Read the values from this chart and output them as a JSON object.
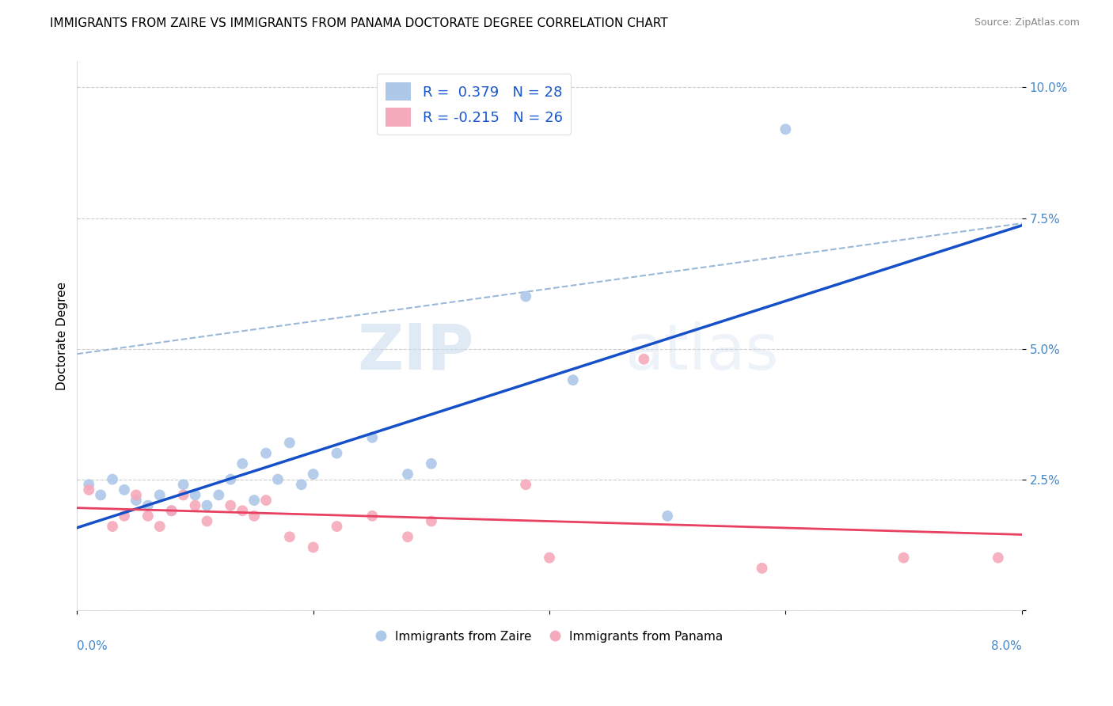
{
  "title": "IMMIGRANTS FROM ZAIRE VS IMMIGRANTS FROM PANAMA DOCTORATE DEGREE CORRELATION CHART",
  "source": "Source: ZipAtlas.com",
  "ylabel": "Doctorate Degree",
  "y_ticks": [
    0.0,
    0.025,
    0.05,
    0.075,
    0.1
  ],
  "y_tick_labels": [
    "",
    "2.5%",
    "5.0%",
    "7.5%",
    "10.0%"
  ],
  "xlim": [
    0.0,
    0.08
  ],
  "ylim": [
    0.0,
    0.105
  ],
  "legend_r1": "R =  0.379   N = 28",
  "legend_r2": "R = -0.215   N = 26",
  "color_zaire": "#adc8e8",
  "color_panama": "#f5aabb",
  "line_color_zaire": "#1650c8",
  "line_color_panama": "#e84060",
  "line_color_dashed": "#9ab8d8",
  "watermark_zip": "ZIP",
  "watermark_atlas": "atlas",
  "zaire_x": [
    0.001,
    0.002,
    0.003,
    0.004,
    0.005,
    0.006,
    0.007,
    0.008,
    0.009,
    0.01,
    0.011,
    0.012,
    0.013,
    0.014,
    0.015,
    0.016,
    0.017,
    0.018,
    0.019,
    0.02,
    0.022,
    0.025,
    0.028,
    0.03,
    0.038,
    0.042,
    0.05,
    0.06
  ],
  "zaire_y": [
    0.024,
    0.022,
    0.025,
    0.023,
    0.021,
    0.02,
    0.022,
    0.019,
    0.024,
    0.022,
    0.02,
    0.022,
    0.025,
    0.028,
    0.021,
    0.03,
    0.025,
    0.032,
    0.024,
    0.026,
    0.03,
    0.033,
    0.026,
    0.028,
    0.06,
    0.044,
    0.018,
    0.092
  ],
  "panama_x": [
    0.001,
    0.003,
    0.004,
    0.005,
    0.006,
    0.007,
    0.008,
    0.009,
    0.01,
    0.011,
    0.013,
    0.014,
    0.015,
    0.016,
    0.018,
    0.02,
    0.022,
    0.025,
    0.028,
    0.03,
    0.038,
    0.04,
    0.048,
    0.058,
    0.07,
    0.078
  ],
  "panama_y": [
    0.023,
    0.016,
    0.018,
    0.022,
    0.018,
    0.016,
    0.019,
    0.022,
    0.02,
    0.017,
    0.02,
    0.019,
    0.018,
    0.021,
    0.014,
    0.012,
    0.016,
    0.018,
    0.014,
    0.017,
    0.024,
    0.01,
    0.048,
    0.008,
    0.01,
    0.01
  ],
  "title_fontsize": 11,
  "source_fontsize": 9,
  "tick_fontsize": 11,
  "legend_fontsize": 13,
  "ylabel_fontsize": 11,
  "marker_size": 100,
  "background_color": "#ffffff",
  "grid_color": "#cccccc"
}
